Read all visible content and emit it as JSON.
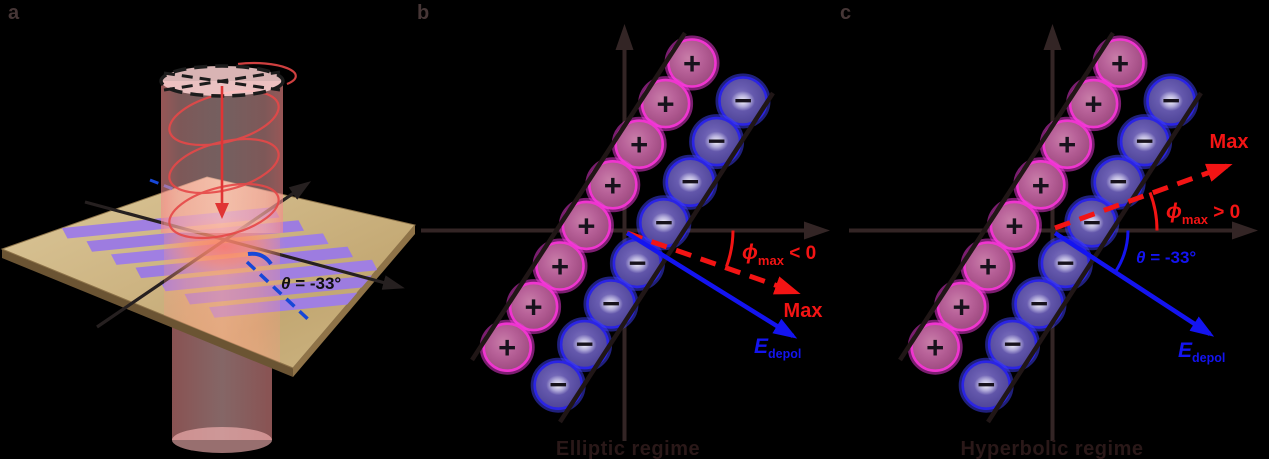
{
  "figure": {
    "panel_a_label": "a",
    "panel_b_label": "b",
    "panel_c_label": "c"
  },
  "symbols": {
    "plus": "+",
    "minus": "−"
  },
  "panel_a": {
    "theta": {
      "symbol": "θ",
      "rest": " = -33°"
    }
  },
  "panel_b": {
    "caption": "Elliptic regime",
    "max_label": "Max",
    "phi": {
      "symbol": "ϕ",
      "sub": "max",
      "rest": " < 0"
    },
    "e_field": {
      "symbol": "E",
      "sub": "depol"
    },
    "chains": [
      {
        "kind": "plus",
        "start": [
          692,
          63
        ],
        "dx": -26.4,
        "dy": 40.6,
        "count": 8,
        "r": 23.5
      },
      {
        "kind": "minus",
        "start": [
          743,
          101
        ],
        "dx": -26.4,
        "dy": 40.6,
        "count": 8,
        "r": 23.5
      }
    ]
  },
  "panel_c": {
    "caption": "Hyperbolic regime",
    "max_label": "Max",
    "phi": {
      "symbol": "ϕ",
      "sub": "max",
      "rest": " > 0"
    },
    "theta": {
      "symbol": "θ",
      "rest": " = -33°"
    },
    "e_field": {
      "symbol": "E",
      "sub": "depol"
    },
    "chains": [
      {
        "kind": "plus",
        "start": [
          1120,
          63
        ],
        "dx": -26.4,
        "dy": 40.6,
        "count": 8,
        "r": 23.5
      },
      {
        "kind": "minus",
        "start": [
          1171,
          101
        ],
        "dx": -26.4,
        "dy": 40.6,
        "count": 8,
        "r": 23.5
      }
    ]
  },
  "colors": {
    "red_accent": "#f31414",
    "blue_accent": "#1414f0",
    "axis": "#332525",
    "pink_ball_rim": "#ef35cf",
    "blue_ball_rim": "#2b24e4",
    "gold_plate": "#cdb482",
    "grating_stripe": "#a07fe2",
    "beam_pink": "#f9b9b9"
  }
}
